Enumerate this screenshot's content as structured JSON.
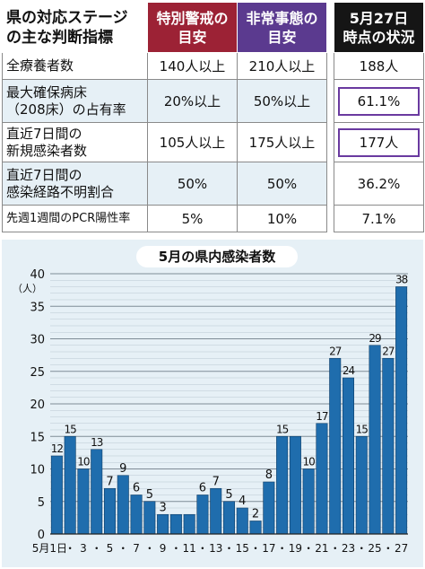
{
  "table": {
    "header": {
      "label_lines": [
        "県の対応ステージ",
        "の主な判断指標"
      ],
      "col1_lines": [
        "特別警戒の",
        "目安"
      ],
      "col2_lines": [
        "非常事態の",
        "目安"
      ],
      "col3_lines": [
        "5月27日",
        "時点の状況"
      ]
    },
    "rows": [
      {
        "label_lines": [
          "全療養者数"
        ],
        "special": "140人以上",
        "emergency": "210人以上",
        "current": "188人",
        "highlight": false
      },
      {
        "label_lines": [
          "最大確保病床",
          "（208床）の占有率"
        ],
        "special": "20%以上",
        "emergency": "50%以上",
        "current": "61.1%",
        "highlight": true
      },
      {
        "label_lines": [
          "直近7日間の",
          "新規感染者数"
        ],
        "special": "105人以上",
        "emergency": "175人以上",
        "current": "177人",
        "highlight": true
      },
      {
        "label_lines": [
          "直近7日間の",
          "感染経路不明割合"
        ],
        "special": "50%",
        "emergency": "50%",
        "current": "36.2%",
        "highlight": false
      },
      {
        "label_lines": [
          "先週1週間のPCR陽性率"
        ],
        "special": "5%",
        "emergency": "10%",
        "current": "7.1%",
        "highlight": false
      }
    ],
    "colors": {
      "special": "#9c2235",
      "emergency": "#5b3a8f",
      "current": "#151515",
      "highlight_border": "#6a3aa0",
      "row_alt": "#e6f0f6"
    }
  },
  "chart_data": {
    "type": "bar",
    "title": "5月の県内感染者数",
    "ylabel": "（人）",
    "ylim": [
      0,
      40
    ],
    "yticks": [
      0,
      5,
      10,
      15,
      20,
      25,
      30,
      35,
      40
    ],
    "grid": true,
    "categories": [
      "1",
      "2",
      "3",
      "4",
      "5",
      "6",
      "7",
      "8",
      "9",
      "10",
      "11",
      "12",
      "13",
      "14",
      "15",
      "16",
      "17",
      "18",
      "19",
      "20",
      "21",
      "22",
      "23",
      "24",
      "25",
      "26",
      "27"
    ],
    "xtick_labels": [
      "5月1日",
      "3",
      "5",
      "7",
      "9",
      "11",
      "13",
      "15",
      "17",
      "19",
      "21",
      "23",
      "25",
      "27"
    ],
    "values": [
      12,
      15,
      10,
      13,
      7,
      9,
      6,
      5,
      3,
      3,
      3,
      6,
      7,
      5,
      4,
      2,
      8,
      15,
      15,
      10,
      17,
      27,
      24,
      15,
      29,
      27,
      38
    ],
    "value_labels": [
      "12",
      "15",
      "10",
      "13",
      "7",
      "9",
      "6",
      "5",
      "3",
      "",
      "",
      "6",
      "7",
      "5",
      "4",
      "2",
      "8",
      "15",
      "",
      "10",
      "17",
      "27",
      "24",
      "15",
      "29",
      "27",
      "38"
    ],
    "bar_color": "#1f6dad",
    "background": "#e6f0f6"
  }
}
